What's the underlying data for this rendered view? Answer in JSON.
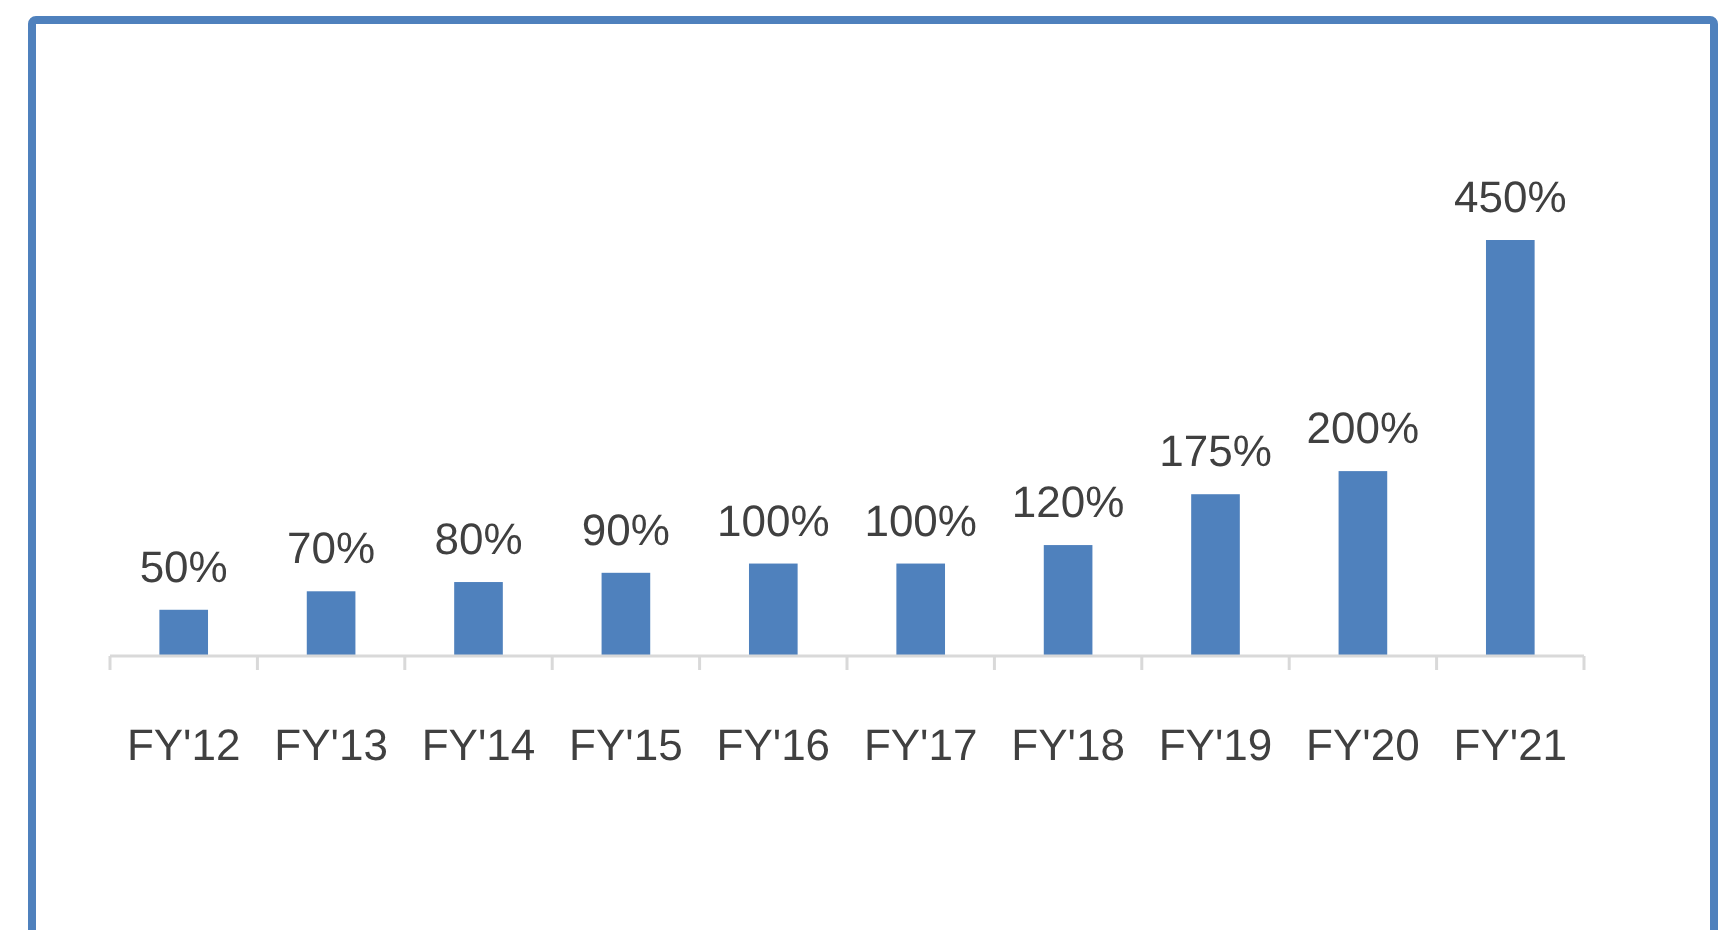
{
  "chart_data": {
    "type": "bar",
    "categories": [
      "FY'12",
      "FY'13",
      "FY'14",
      "FY'15",
      "FY'16",
      "FY'17",
      "FY'18",
      "FY'19",
      "FY'20",
      "FY'21"
    ],
    "values": [
      50,
      70,
      80,
      90,
      100,
      100,
      120,
      175,
      200,
      450
    ],
    "value_labels": [
      "50%",
      "70%",
      "80%",
      "90%",
      "100%",
      "100%",
      "120%",
      "175%",
      "200%",
      "450%"
    ],
    "color": "#4f81bd"
  }
}
